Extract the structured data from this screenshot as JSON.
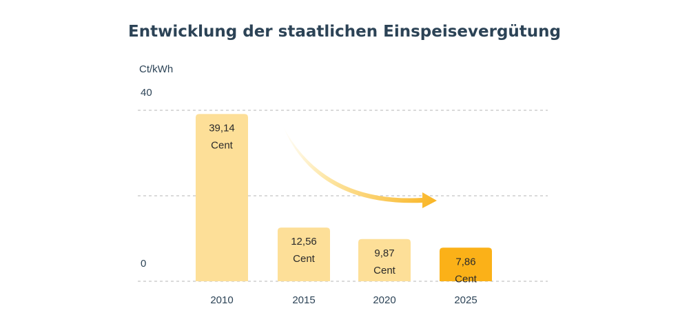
{
  "chart_data": {
    "type": "bar",
    "title": "Entwicklung der staatlichen Einspeisevergütung",
    "ylabel": "Ct/kWh",
    "xlabel": "",
    "ylim": [
      0,
      40
    ],
    "yticks": [
      "0",
      "40"
    ],
    "grid": true,
    "categories": [
      "2010",
      "2015",
      "2020",
      "2025"
    ],
    "values": [
      39.14,
      12.56,
      9.87,
      7.86
    ],
    "value_labels": [
      "39,14",
      "12,56",
      "9,87",
      "7,86"
    ],
    "value_unit": "Cent",
    "colors": {
      "bar": "#fddf98",
      "highlight_bar": "#fbb118",
      "highlight_category": "2025",
      "arrow": "#f9b524",
      "text": "#2c4356"
    },
    "annotation": "downward-trend-arrow"
  }
}
